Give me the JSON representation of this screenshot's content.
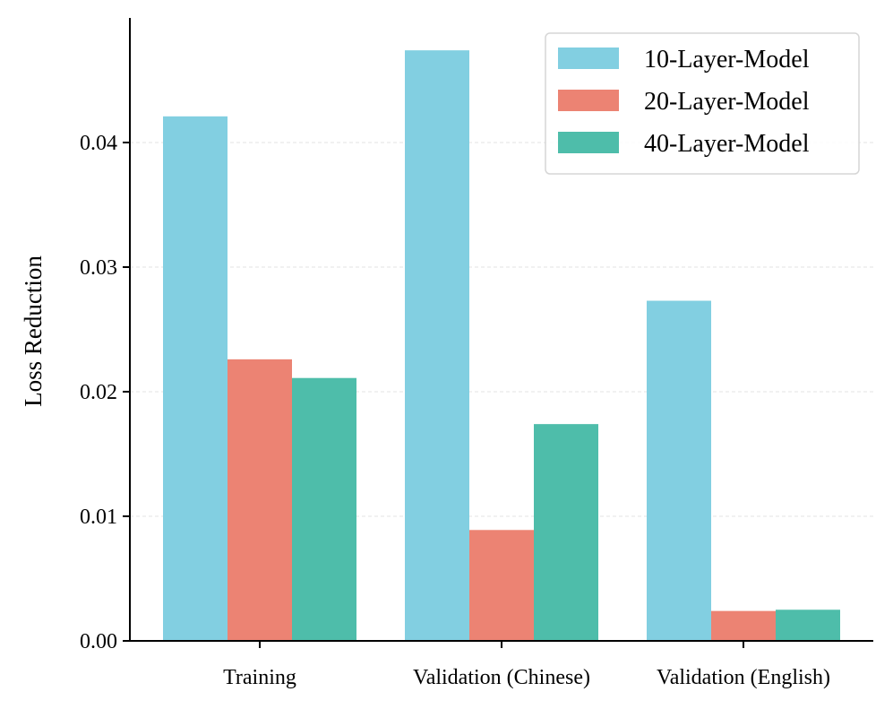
{
  "chart_data": {
    "type": "bar",
    "title": "",
    "xlabel": "",
    "ylabel": "Loss Reduction",
    "categories": [
      "Training",
      "Validation (Chinese)",
      "Validation (English)"
    ],
    "series": [
      {
        "name": "10-Layer-Model",
        "color": "#82CFE1",
        "values": [
          0.0421,
          0.0474,
          0.0273
        ]
      },
      {
        "name": "20-Layer-Model",
        "color": "#EC8373",
        "values": [
          0.0226,
          0.0089,
          0.0024
        ]
      },
      {
        "name": "40-Layer-Model",
        "color": "#4EBDAA",
        "values": [
          0.0211,
          0.0174,
          0.0025
        ]
      }
    ],
    "ylim": [
      0,
      0.05
    ],
    "yticks": [
      0.0,
      0.01,
      0.02,
      0.03,
      0.04
    ],
    "ytick_labels": [
      "0.00",
      "0.01",
      "0.02",
      "0.03",
      "0.04"
    ],
    "grid": true,
    "legend_position": "top-right"
  }
}
